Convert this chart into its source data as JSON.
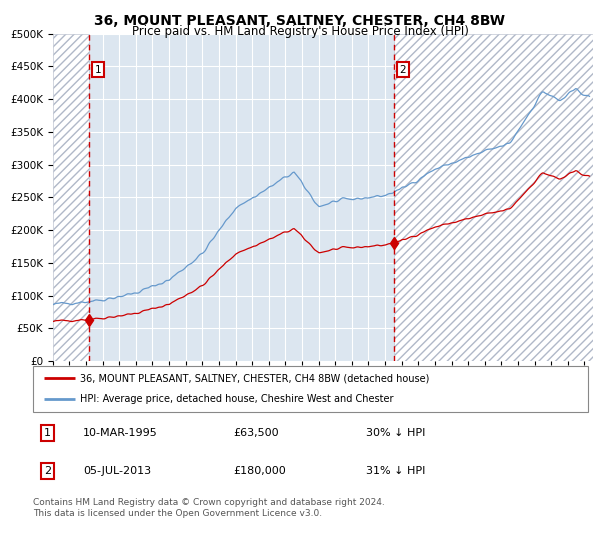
{
  "title": "36, MOUNT PLEASANT, SALTNEY, CHESTER, CH4 8BW",
  "subtitle": "Price paid vs. HM Land Registry's House Price Index (HPI)",
  "legend_entry1": "36, MOUNT PLEASANT, SALTNEY, CHESTER, CH4 8BW (detached house)",
  "legend_entry2": "HPI: Average price, detached house, Cheshire West and Chester",
  "annotation1_label": "1",
  "annotation1_date": "10-MAR-1995",
  "annotation1_price": "£63,500",
  "annotation1_hpi": "30% ↓ HPI",
  "annotation2_label": "2",
  "annotation2_date": "05-JUL-2013",
  "annotation2_price": "£180,000",
  "annotation2_hpi": "31% ↓ HPI",
  "footer": "Contains HM Land Registry data © Crown copyright and database right 2024.\nThis data is licensed under the Open Government Licence v3.0.",
  "sale1_year": 1995.19,
  "sale1_price": 63500,
  "sale2_year": 2013.51,
  "sale2_price": 180000,
  "ylim_max": 500000,
  "ylim_min": 0,
  "xlim_min": 1993.0,
  "xlim_max": 2025.5,
  "bg_color": "#dce6f0",
  "hatch_color": "#c8d4e4",
  "red_color": "#cc0000",
  "blue_color": "#6699cc",
  "grid_color": "#ffffff",
  "title_fontsize": 10,
  "subtitle_fontsize": 8.5,
  "tick_fontsize": 6.5,
  "ytick_fontsize": 7.5
}
